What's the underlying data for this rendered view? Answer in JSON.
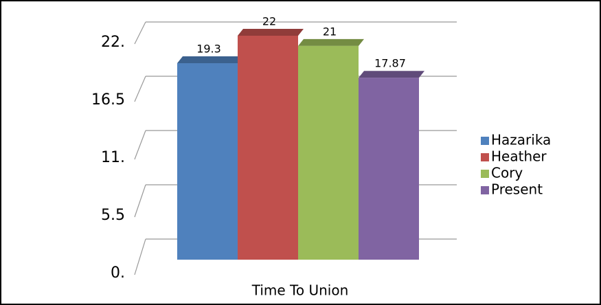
{
  "chart_data": {
    "type": "bar3d",
    "categories": [
      "Time To Union"
    ],
    "series": [
      {
        "name": "Hazarika",
        "color": "#4f81bd",
        "values": [
          19.3
        ]
      },
      {
        "name": "Heather",
        "color": "#c0504d",
        "values": [
          22
        ]
      },
      {
        "name": "Cory",
        "color": "#9bbb59",
        "values": [
          21
        ]
      },
      {
        "name": "Present",
        "color": "#8064a2",
        "values": [
          17.87
        ]
      }
    ],
    "ylim": [
      0,
      22
    ],
    "yticks": [
      {
        "value": 0,
        "label": "0."
      },
      5.5,
      {
        "value": 11,
        "label": "11."
      },
      16.5,
      {
        "value": 22,
        "label": "22."
      }
    ],
    "grid": true,
    "legend": "right"
  }
}
